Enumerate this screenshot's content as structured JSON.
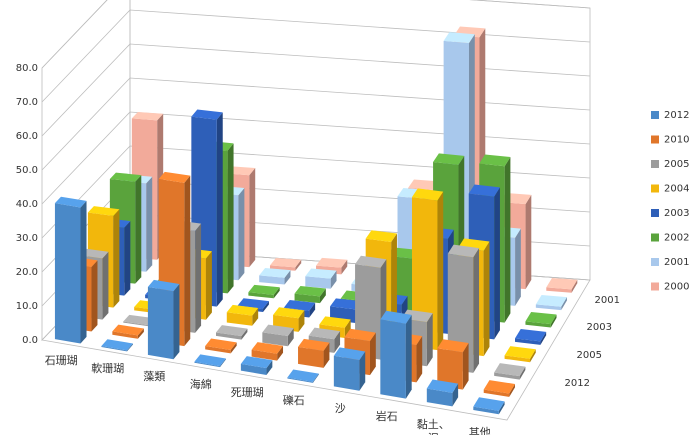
{
  "chart_data": {
    "type": "bar",
    "subtype": "3d-column",
    "title": "",
    "xlabel": "",
    "ylabel": "",
    "ylim": [
      0,
      80
    ],
    "yticks": [
      "0.0",
      "10.0",
      "20.0",
      "30.0",
      "40.0",
      "50.0",
      "60.0",
      "70.0",
      "80.0"
    ],
    "grid": true,
    "legend_position": "right",
    "categories": [
      "石珊瑚",
      "軟珊瑚",
      "藻類",
      "海綿",
      "死珊瑚",
      "礫石",
      "沙",
      "岩石",
      "黏土、泥",
      "其他"
    ],
    "depth_axis_labels": [
      "2001",
      "2003",
      "2005",
      "2012"
    ],
    "series": [
      {
        "name": "2012",
        "color": "#4a89c8",
        "values": [
          40,
          0,
          20,
          0,
          2,
          0,
          9,
          22,
          4,
          1
        ]
      },
      {
        "name": "2010",
        "color": "#e0762a",
        "values": [
          19,
          1,
          48,
          1,
          2,
          5,
          10,
          11,
          11,
          1
        ]
      },
      {
        "name": "2005",
        "color": "#9c9c9c",
        "values": [
          18,
          0,
          30,
          1,
          3,
          4,
          27,
          13,
          34,
          1
        ]
      },
      {
        "name": "2004",
        "color": "#f2b70c",
        "values": [
          27,
          1,
          18,
          3,
          4,
          3,
          30,
          44,
          31,
          1
        ]
      },
      {
        "name": "2003",
        "color": "#2e5fb8",
        "values": [
          20,
          1,
          55,
          1,
          2,
          4,
          7,
          28,
          42,
          1
        ]
      },
      {
        "name": "2002",
        "color": "#5aa33c",
        "values": [
          30,
          1,
          42,
          1,
          2,
          2,
          16,
          45,
          46,
          1
        ]
      },
      {
        "name": "2001",
        "color": "#a8c8ec",
        "values": [
          26,
          1,
          25,
          2,
          3,
          2,
          29,
          76,
          20,
          1
        ]
      },
      {
        "name": "2000",
        "color": "#f2aa9a",
        "values": [
          41,
          1,
          27,
          1,
          2,
          1,
          27,
          73,
          25,
          1
        ]
      }
    ]
  }
}
